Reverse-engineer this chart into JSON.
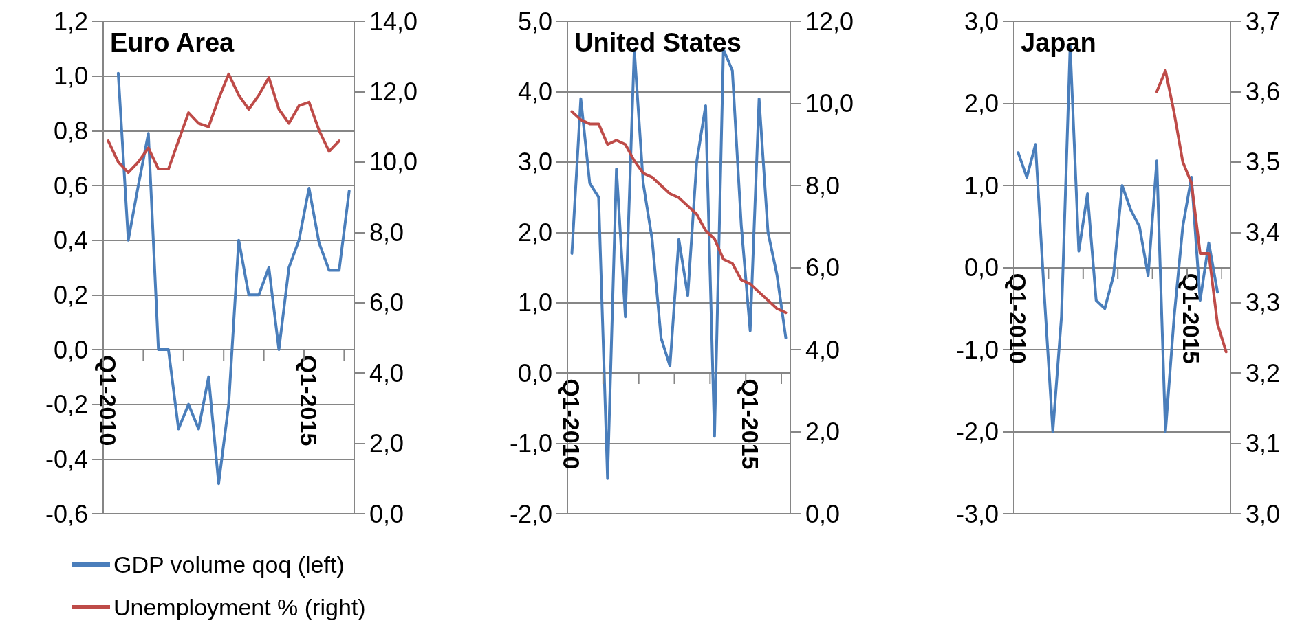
{
  "chart_data": [
    {
      "type": "line",
      "title": "Euro Area",
      "categories": [
        "Q1-2010",
        null,
        null,
        null,
        null,
        null,
        null,
        null,
        null,
        null,
        null,
        null,
        null,
        null,
        null,
        null,
        null,
        null,
        null,
        null,
        "Q1-2015",
        null,
        null,
        null,
        null
      ],
      "series": [
        {
          "name": "GDP volume qoq (left)",
          "color": "#4a7ebb",
          "values": [
            null,
            1.01,
            0.4,
            0.6,
            0.79,
            0.0,
            0.0,
            -0.29,
            -0.2,
            -0.29,
            -0.1,
            -0.49,
            -0.2,
            0.4,
            0.2,
            0.2,
            0.3,
            0.0,
            0.3,
            0.4,
            0.59,
            0.39,
            0.29,
            0.29,
            0.58
          ]
        },
        {
          "name": "Unemployment % (right)",
          "color": "#be4b48",
          "axis": "y2",
          "values": [
            10.6,
            10.0,
            9.7,
            10.0,
            10.4,
            9.8,
            9.8,
            10.6,
            11.4,
            11.1,
            11.0,
            11.8,
            12.5,
            11.9,
            11.5,
            11.9,
            12.4,
            11.5,
            11.1,
            11.6,
            11.7,
            10.9,
            10.3,
            10.6,
            null
          ]
        }
      ],
      "ylim": [
        -0.6,
        1.2
      ],
      "yticks": [
        {
          "value": -0.6,
          "label": "-0,6"
        },
        {
          "value": -0.4,
          "label": "-0,4"
        },
        {
          "value": -0.2,
          "label": "-0,2"
        },
        {
          "value": 0,
          "label": "0,0"
        },
        {
          "value": 0.2,
          "label": "0,2"
        },
        {
          "value": 0.4,
          "label": "0,4"
        },
        {
          "value": 0.6,
          "label": "0,6"
        },
        {
          "value": 0.8,
          "label": "0,8"
        },
        {
          "value": 1.0,
          "label": "1,0"
        },
        {
          "value": 1.2,
          "label": "1,2"
        }
      ],
      "y2lim": [
        0,
        14
      ],
      "y2ticks": [
        {
          "value": 0,
          "label": "0,0"
        },
        {
          "value": 2,
          "label": "2,0"
        },
        {
          "value": 4,
          "label": "4,0"
        },
        {
          "value": 6,
          "label": "6,0"
        },
        {
          "value": 8,
          "label": "8,0"
        },
        {
          "value": 10,
          "label": "10,0"
        },
        {
          "value": 12,
          "label": "12,0"
        },
        {
          "value": 14,
          "label": "14,0"
        }
      ],
      "grid": "y",
      "legend": "bottom left",
      "marker": "none",
      "line_style": "solid"
    },
    {
      "type": "line",
      "title": "United States",
      "categories": [
        "Q1-2010",
        null,
        null,
        null,
        null,
        null,
        null,
        null,
        null,
        null,
        null,
        null,
        null,
        null,
        null,
        null,
        null,
        null,
        null,
        null,
        "Q1-2015",
        null,
        null,
        null,
        null
      ],
      "series": [
        {
          "color": "#4a7ebb",
          "values": [
            1.7,
            3.9,
            2.7,
            2.5,
            -1.5,
            2.9,
            0.8,
            4.6,
            2.7,
            1.9,
            0.5,
            0.1,
            1.9,
            1.1,
            3.0,
            3.8,
            -0.9,
            4.6,
            4.3,
            2.1,
            0.6,
            3.9,
            2.0,
            1.4,
            0.5
          ]
        },
        {
          "color": "#be4b48",
          "axis": "y2",
          "values": [
            9.8,
            9.6,
            9.5,
            9.5,
            9.0,
            9.1,
            9.0,
            8.6,
            8.3,
            8.2,
            8.0,
            7.8,
            7.7,
            7.5,
            7.3,
            6.9,
            6.7,
            6.2,
            6.1,
            5.7,
            5.6,
            5.4,
            5.2,
            5.0,
            4.9
          ]
        }
      ],
      "ylim": [
        -2,
        5
      ],
      "yticks": [
        {
          "value": -2,
          "label": "-2,0"
        },
        {
          "value": -1,
          "label": "-1,0"
        },
        {
          "value": 0,
          "label": "0,0"
        },
        {
          "value": 1,
          "label": "1,0"
        },
        {
          "value": 2,
          "label": "2,0"
        },
        {
          "value": 3,
          "label": "3,0"
        },
        {
          "value": 4,
          "label": "4,0"
        },
        {
          "value": 5,
          "label": "5,0"
        }
      ],
      "y2lim": [
        0,
        12
      ],
      "y2ticks": [
        {
          "value": 0,
          "label": "0,0"
        },
        {
          "value": 2,
          "label": "2,0"
        },
        {
          "value": 4,
          "label": "4,0"
        },
        {
          "value": 6,
          "label": "6,0"
        },
        {
          "value": 8,
          "label": "8,0"
        },
        {
          "value": 10,
          "label": "10,0"
        },
        {
          "value": 12,
          "label": "12,0"
        }
      ],
      "grid": "y",
      "legend": false,
      "marker": "none",
      "line_style": "solid"
    },
    {
      "type": "line",
      "title": "Japan",
      "categories": [
        "Q1-2010",
        null,
        null,
        null,
        null,
        null,
        null,
        null,
        null,
        null,
        null,
        null,
        null,
        null,
        null,
        null,
        null,
        null,
        null,
        null,
        "Q1-2015",
        null,
        null,
        null,
        null
      ],
      "series": [
        {
          "color": "#4a7ebb",
          "values": [
            1.4,
            1.1,
            1.5,
            -0.3,
            -2.0,
            -0.6,
            2.7,
            0.2,
            0.9,
            -0.4,
            -0.5,
            -0.1,
            1.0,
            0.7,
            0.5,
            -0.1,
            1.3,
            -2.0,
            -0.6,
            0.5,
            1.1,
            -0.4,
            0.3,
            -0.3,
            null
          ]
        },
        {
          "color": "#be4b48",
          "axis": "y2",
          "values": [
            null,
            null,
            null,
            null,
            null,
            null,
            null,
            null,
            null,
            null,
            null,
            null,
            null,
            null,
            null,
            null,
            3.6,
            3.63,
            3.57,
            3.5,
            3.47,
            3.37,
            3.37,
            3.27,
            3.23
          ]
        }
      ],
      "ylim": [
        -3,
        3
      ],
      "yticks": [
        {
          "value": -3,
          "label": "-3,0"
        },
        {
          "value": -2,
          "label": "-2,0"
        },
        {
          "value": -1,
          "label": "-1,0"
        },
        {
          "value": 0,
          "label": "0,0"
        },
        {
          "value": 1,
          "label": "1,0"
        },
        {
          "value": 2,
          "label": "2,0"
        },
        {
          "value": 3,
          "label": "3,0"
        }
      ],
      "y2lim": [
        3.0,
        3.7
      ],
      "y2ticks": [
        {
          "value": 3.0,
          "label": "3,0"
        },
        {
          "value": 3.1,
          "label": "3,1"
        },
        {
          "value": 3.2,
          "label": "3,2"
        },
        {
          "value": 3.3,
          "label": "3,3"
        },
        {
          "value": 3.4,
          "label": "3,4"
        },
        {
          "value": 3.5,
          "label": "3,5"
        },
        {
          "value": 3.6,
          "label": "3,6"
        },
        {
          "value": 3.7,
          "label": "3,7"
        }
      ],
      "grid": "y",
      "legend": false,
      "marker": "none",
      "line_style": "solid"
    }
  ]
}
